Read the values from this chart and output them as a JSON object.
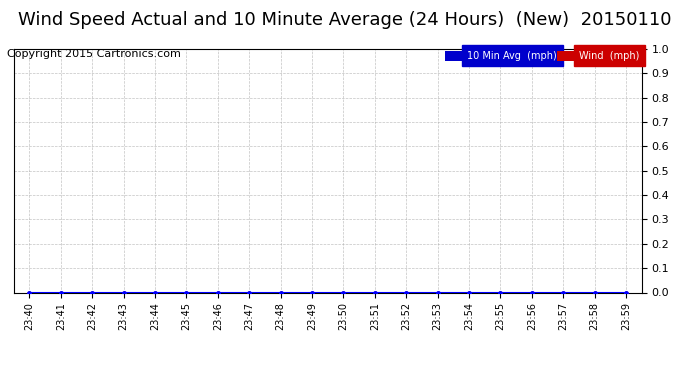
{
  "title": "Wind Speed Actual and 10 Minute Average (24 Hours)  (New)  20150110",
  "copyright": "Copyright 2015 Cartronics.com",
  "x_labels": [
    "23:40",
    "23:41",
    "23:42",
    "23:43",
    "23:44",
    "23:45",
    "23:46",
    "23:47",
    "23:48",
    "23:49",
    "23:50",
    "23:51",
    "23:52",
    "23:53",
    "23:54",
    "23:55",
    "23:56",
    "23:57",
    "23:58",
    "23:59"
  ],
  "wind_actual": [
    0,
    0,
    0,
    0,
    0,
    0,
    0,
    0,
    0,
    0,
    0,
    0,
    0,
    0,
    0,
    0,
    0,
    0,
    0,
    0
  ],
  "wind_avg": [
    0,
    0,
    0,
    0,
    0,
    0,
    0,
    0,
    0,
    0,
    0,
    0,
    0,
    0,
    0,
    0,
    0,
    0,
    0,
    0
  ],
  "ylim": [
    0.0,
    1.0
  ],
  "yticks": [
    0.0,
    0.1,
    0.2,
    0.3,
    0.4,
    0.5,
    0.6,
    0.7,
    0.8,
    0.9,
    1.0
  ],
  "avg_color": "#0000ff",
  "wind_color": "#ff0000",
  "bg_color": "#ffffff",
  "grid_color": "#aaaaaa",
  "legend_avg_bg": "#0000cc",
  "legend_wind_bg": "#cc0000",
  "legend_avg_text": "10 Min Avg  (mph)",
  "legend_wind_text": "Wind  (mph)",
  "title_fontsize": 13,
  "copyright_fontsize": 8,
  "tick_fontsize": 8,
  "xtick_fontsize": 7
}
